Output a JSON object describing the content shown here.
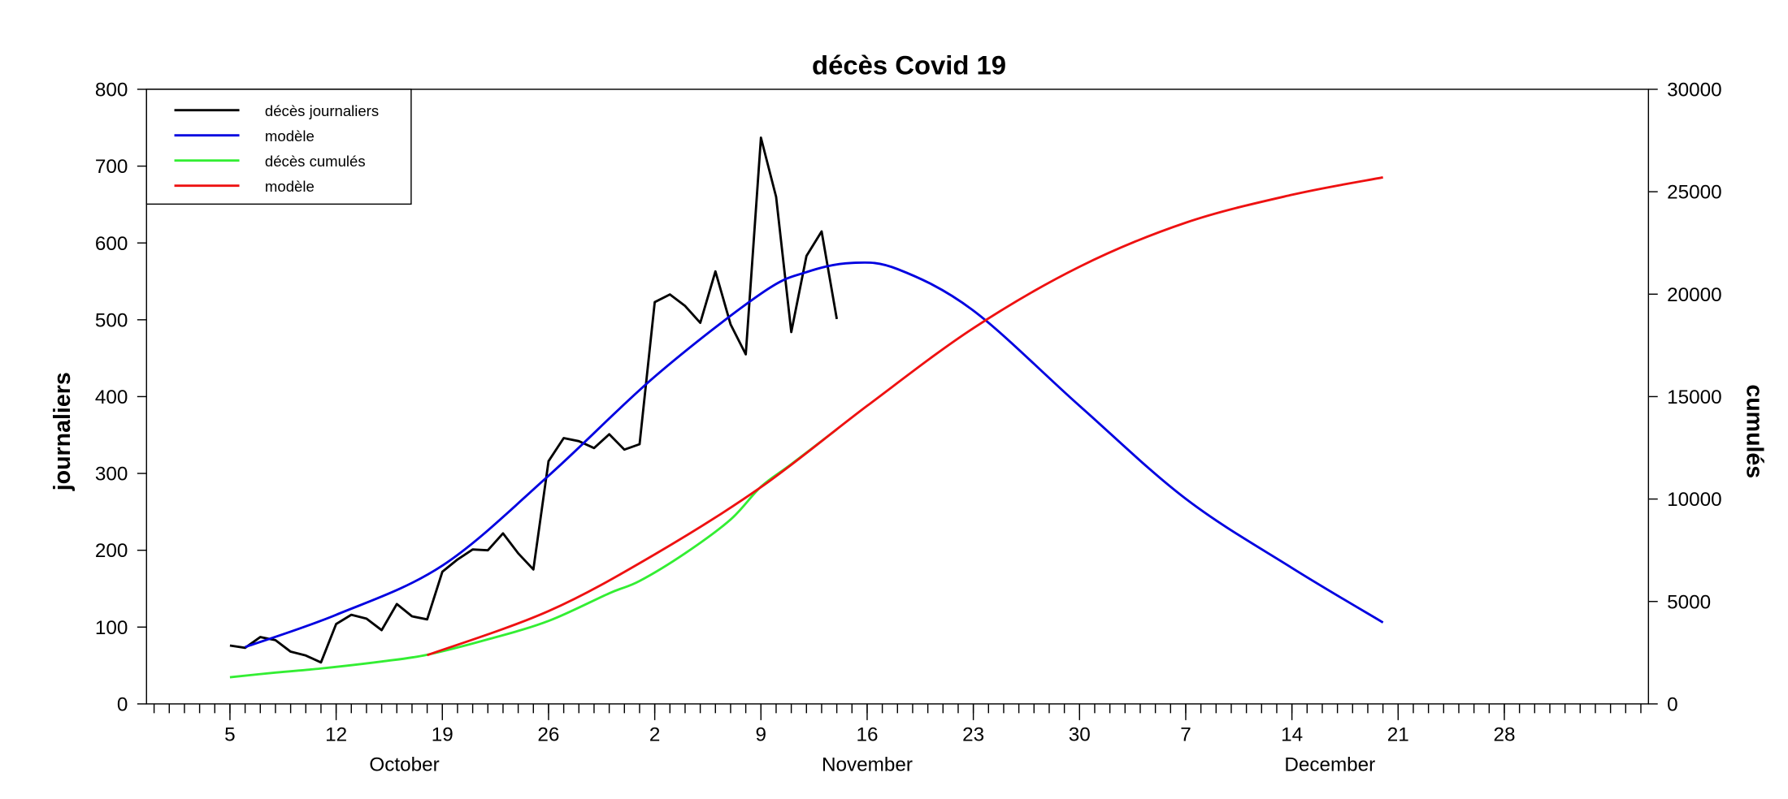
{
  "chart_data": {
    "type": "line",
    "title": "décès Covid 19",
    "ylabel": "journaliers",
    "y2label": "cumulés",
    "xlabel": "",
    "x_unit": "day index (1 = 1 October)",
    "xlim": [
      -0.5,
      98.5
    ],
    "ylim": [
      0,
      800
    ],
    "y2lim": [
      0,
      30000
    ],
    "yticks": [
      0,
      100,
      200,
      300,
      400,
      500,
      600,
      700,
      800
    ],
    "y2ticks": [
      0,
      5000,
      10000,
      15000,
      20000,
      25000,
      30000
    ],
    "xticks": [
      {
        "x": 5,
        "label": "5"
      },
      {
        "x": 12,
        "label": "12"
      },
      {
        "x": 19,
        "label": "19"
      },
      {
        "x": 26,
        "label": "26"
      },
      {
        "x": 33,
        "label": "2"
      },
      {
        "x": 40,
        "label": "9"
      },
      {
        "x": 47,
        "label": "16"
      },
      {
        "x": 54,
        "label": "23"
      },
      {
        "x": 61,
        "label": "30"
      },
      {
        "x": 68,
        "label": "7"
      },
      {
        "x": 75,
        "label": "14"
      },
      {
        "x": 82,
        "label": "21"
      },
      {
        "x": 89,
        "label": "28"
      }
    ],
    "months": [
      {
        "x": 16.5,
        "label": "October"
      },
      {
        "x": 47,
        "label": "November"
      },
      {
        "x": 77.5,
        "label": "December"
      }
    ],
    "grid": false,
    "legend_position": "top-left",
    "series": [
      {
        "name": "décès journaliers",
        "axis": "left",
        "color": "#000000",
        "x": [
          5,
          6,
          7,
          8,
          9,
          10,
          11,
          12,
          13,
          14,
          15,
          16,
          17,
          18,
          19,
          20,
          21,
          22,
          23,
          24,
          25,
          26,
          27,
          28,
          29,
          30,
          31,
          32,
          33,
          34,
          35,
          36,
          37,
          38,
          39,
          40,
          41,
          42,
          43,
          44,
          45
        ],
        "y": [
          76,
          73,
          87,
          83,
          68,
          63,
          54,
          104,
          116,
          111,
          96,
          130,
          114,
          110,
          172,
          188,
          201,
          200,
          222,
          196,
          175,
          316,
          346,
          342,
          333,
          351,
          331,
          338,
          523,
          533,
          518,
          496,
          563,
          494,
          455,
          737,
          660,
          484,
          583,
          615,
          501
        ]
      },
      {
        "name": "modèle",
        "axis": "left",
        "color": "#0000e0",
        "x": [
          6,
          12,
          19,
          26,
          33,
          40,
          43,
          46,
          49,
          54,
          61,
          68,
          75,
          81
        ],
        "y": [
          74,
          116,
          180,
          297,
          426,
          534,
          562,
          574,
          566,
          512,
          388,
          267,
          177,
          106
        ]
      },
      {
        "name": "décès cumulés",
        "axis": "right",
        "color": "#33ee33",
        "x": [
          5,
          8,
          11,
          15,
          18,
          22,
          26,
          30,
          32,
          35,
          38,
          40,
          42,
          45
        ],
        "y": [
          1300,
          1530,
          1730,
          2070,
          2400,
          3150,
          4050,
          5400,
          6000,
          7350,
          9000,
          10600,
          11700,
          13400
        ]
      },
      {
        "name": "modèle",
        "axis": "right",
        "color": "#ee1111",
        "x": [
          18,
          26,
          33,
          40,
          47,
          54,
          61,
          68,
          75,
          81
        ],
        "y": [
          2380,
          4530,
          7300,
          10580,
          14550,
          18340,
          21340,
          23490,
          24850,
          25700
        ]
      }
    ]
  }
}
